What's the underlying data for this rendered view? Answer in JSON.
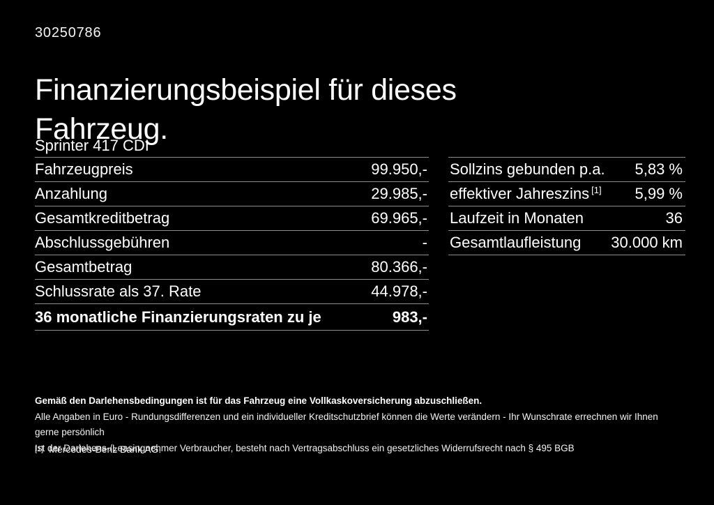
{
  "page": {
    "background_color": "#000000",
    "text_color": "#ffffff",
    "divider_color": "#8f8f8f"
  },
  "header": {
    "doc_id": "30250786",
    "title": "Finanzierungsbeispiel für dieses Fahrzeug.",
    "model": "Sprinter 417 CDI"
  },
  "finance_table": {
    "rows": [
      {
        "label": "Fahrzeugpreis",
        "value": "99.950,-"
      },
      {
        "label": "Anzahlung",
        "value": "29.985,-"
      },
      {
        "label": "Gesamtkreditbetrag",
        "value": "69.965,-"
      },
      {
        "label": "Abschlussgebühren",
        "value": "-"
      },
      {
        "label": "Gesamtbetrag",
        "value": "80.366,-"
      },
      {
        "label": "Schlussrate als 37. Rate",
        "value": "44.978,-"
      },
      {
        "label": "36 monatliche Finanzierungsraten zu je",
        "value": "983,-"
      }
    ]
  },
  "conditions_table": {
    "rows": [
      {
        "label": "Sollzins gebunden p.a.",
        "footnote_ref": "",
        "value": "5,83 %"
      },
      {
        "label": "effektiver Jahreszins",
        "footnote_ref": "[1]",
        "value": "5,99 %"
      },
      {
        "label": "Laufzeit in Monaten",
        "footnote_ref": "",
        "value": "36"
      },
      {
        "label": "Gesamtlaufleistung",
        "footnote_ref": "",
        "value": "30.000 km"
      }
    ]
  },
  "footer": {
    "insurance_note": "Gemäß den Darlehensbedingungen ist für das Fahrzeug eine Vollkaskoversicherung abzuschließen.",
    "disclaimer_line1": "Alle Angaben in Euro - Rundungsdifferenzen und ein individueller Kreditschutzbrief können die Werte verändern - Ihr Wunschrate errechnen wir Ihnen gerne persönlich",
    "disclaimer_line2": "Ist der Darlehens-/Leasingnehmer Verbraucher, besteht nach Vertragsabschluss ein gesetzliches Widerrufsrecht nach § 495 BGB",
    "footnote_marker": "[1]",
    "footnote_text": "Mercedes-Benz Bank AG."
  }
}
